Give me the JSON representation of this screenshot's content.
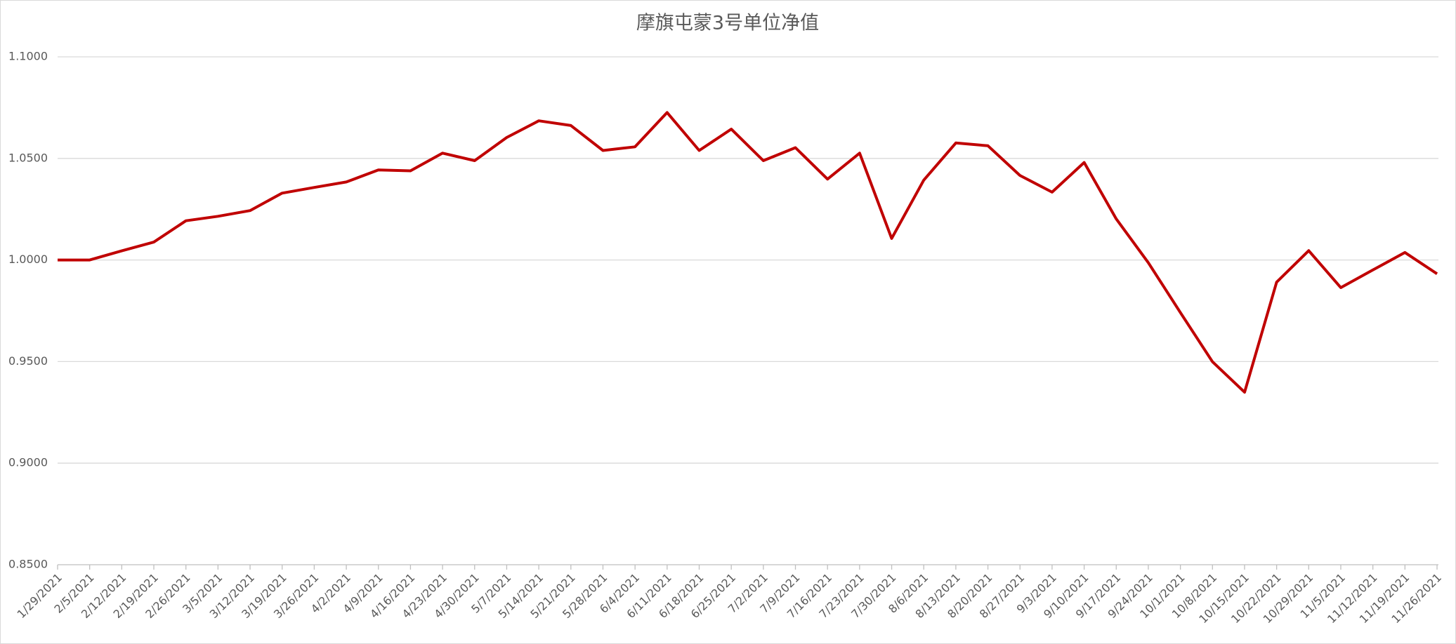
{
  "chart_data": {
    "type": "line",
    "title": "摩旗屯蒙3号单位净值",
    "categories": [
      "1/29/2021",
      "2/5/2021",
      "2/12/2021",
      "2/19/2021",
      "2/26/2021",
      "3/5/2021",
      "3/12/2021",
      "3/19/2021",
      "3/26/2021",
      "4/2/2021",
      "4/9/2021",
      "4/16/2021",
      "4/23/2021",
      "4/30/2021",
      "5/7/2021",
      "5/14/2021",
      "5/21/2021",
      "5/28/2021",
      "6/4/2021",
      "6/11/2021",
      "6/18/2021",
      "6/25/2021",
      "7/2/2021",
      "7/9/2021",
      "7/16/2021",
      "7/23/2021",
      "7/30/2021",
      "8/6/2021",
      "8/13/2021",
      "8/20/2021",
      "8/27/2021",
      "9/3/2021",
      "9/10/2021",
      "9/17/2021",
      "9/24/2021",
      "10/1/2021",
      "10/8/2021",
      "10/15/2021",
      "10/22/2021",
      "10/29/2021",
      "11/5/2021",
      "11/12/2021",
      "11/19/2021",
      "11/26/2021"
    ],
    "values": [
      1.0,
      1.0,
      1.0045,
      1.0088,
      1.0193,
      1.0215,
      1.0243,
      1.0329,
      1.0357,
      1.0384,
      1.0443,
      1.0439,
      1.0526,
      1.0489,
      1.0603,
      1.0685,
      1.0662,
      1.0539,
      1.0557,
      1.0726,
      1.0539,
      1.0644,
      1.0489,
      1.0553,
      1.0398,
      1.0526,
      1.0106,
      1.0393,
      1.0576,
      1.0562,
      1.0416,
      1.0334,
      1.048,
      1.0202,
      0.9987,
      0.9741,
      0.9499,
      0.9349,
      0.9891,
      1.0046,
      0.9864,
      0.9951,
      1.0037,
      0.9932
    ],
    "color": "#c00000",
    "ylim": [
      0.85,
      1.1
    ],
    "yticks": [
      {
        "value": 0.85,
        "label": "0.8500"
      },
      {
        "value": 0.9,
        "label": "0.9000"
      },
      {
        "value": 0.95,
        "label": "0.9500"
      },
      {
        "value": 1.0,
        "label": "1.0000"
      },
      {
        "value": 1.05,
        "label": "1.0500"
      },
      {
        "value": 1.1,
        "label": "1.1000"
      }
    ],
    "grid": true
  }
}
